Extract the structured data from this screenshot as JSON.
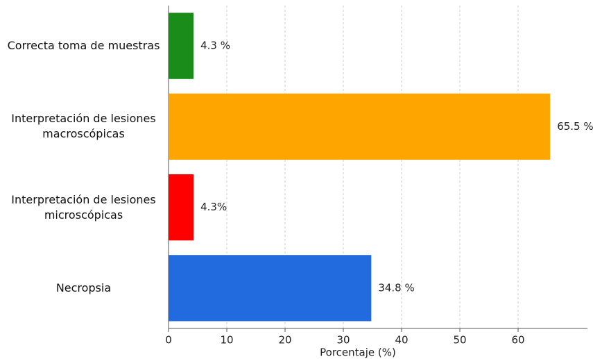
{
  "chart_data": {
    "type": "barh",
    "categories": [
      "Correcta toma de muestras",
      "Interpretación de lesiones macroscópicas",
      "Interpretación de lesiones microscópicas",
      "Necropsia"
    ],
    "values": [
      4.3,
      65.5,
      4.3,
      34.8
    ],
    "value_labels": [
      "4.3 %",
      "65.5 %",
      "4.3%",
      "34.8 %"
    ],
    "colors": [
      "#1a8c1a",
      "#ffa500",
      "#ff0000",
      "#226bde"
    ],
    "xlabel": "Porcentaje (%)",
    "xlim": [
      0,
      65
    ],
    "xticks": [
      0,
      10,
      20,
      30,
      40,
      50,
      60
    ],
    "grid": true
  }
}
